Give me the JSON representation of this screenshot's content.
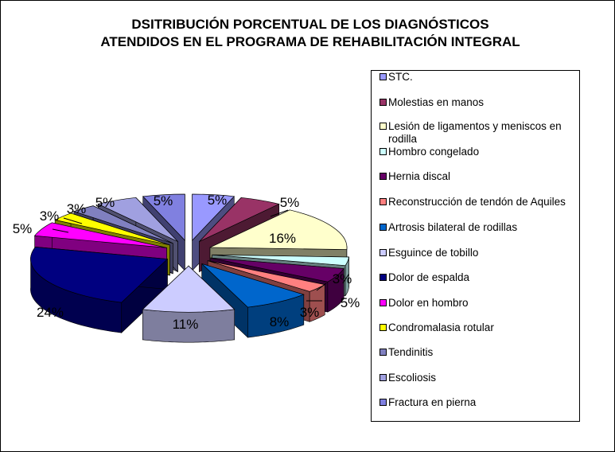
{
  "chart_data": {
    "type": "pie",
    "title": [
      "DSITRIBUCIÓN PORCENTUAL DE LOS DIAGNÓSTICOS",
      "ATENDIDOS EN EL PROGRAMA DE REHABILITACIÓN INTEGRAL"
    ],
    "legend_position": "right",
    "style": "3D exploded pie",
    "slices": [
      {
        "name": "STC.",
        "value": 5,
        "label": "5%",
        "color": "#9999ff"
      },
      {
        "name": "Molestias en manos",
        "value": 5,
        "label": "5%",
        "color": "#993366"
      },
      {
        "name": "Lesión de ligamentos y meniscos en rodilla",
        "value": 16,
        "label": "16%",
        "color": "#ffffcc"
      },
      {
        "name": "Hombro congelado",
        "value": 3,
        "label": "3%",
        "color": "#ccffff"
      },
      {
        "name": "Hernia discal",
        "value": 5,
        "label": "5%",
        "color": "#660066"
      },
      {
        "name": "Reconstrucción de tendón de Aquiles",
        "value": 3,
        "label": "3%",
        "color": "#ff8080"
      },
      {
        "name": "Artrosis bilateral de rodillas",
        "value": 8,
        "label": "8%",
        "color": "#0066cc"
      },
      {
        "name": "Esguince de tobillo",
        "value": 11,
        "label": "11%",
        "color": "#ccccff"
      },
      {
        "name": "Dolor de espalda",
        "value": 24,
        "label": "24%",
        "color": "#000080"
      },
      {
        "name": "Dolor en hombro",
        "value": 5,
        "label": "5%",
        "color": "#ff00ff"
      },
      {
        "name": "Condromalasia rotular",
        "value": 3,
        "label": "3%",
        "color": "#ffff00"
      },
      {
        "name": "Tendinitis",
        "value": 3,
        "label": "3%",
        "color": "#8080c0"
      },
      {
        "name": "Escoliosis",
        "value": 5,
        "label": "5%",
        "color": "#a0a0e0"
      },
      {
        "name": "Fractura en pierna",
        "value": 5,
        "label": "5%",
        "color": "#8080e0"
      }
    ]
  }
}
